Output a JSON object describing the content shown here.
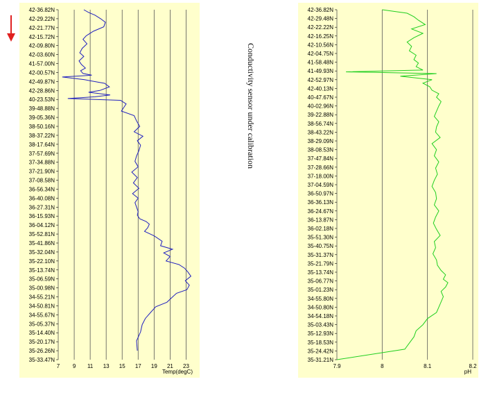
{
  "caption": "Conductivity sensor under calibration",
  "direction_arrow_icon": "arrow-down-icon",
  "colors": {
    "panel_bg": "#ffffcc",
    "temp_line": "#1f1fbf",
    "ph_line": "#1fcf1f",
    "arrow": "#e02020",
    "grid": "#555555"
  },
  "chart_data": [
    {
      "type": "line",
      "id": "temp",
      "xlabel": "Temp(degC)",
      "xticks": [
        "7",
        "9",
        "11",
        "13",
        "15",
        "17",
        "19",
        "21",
        "23"
      ],
      "xlim": [
        7,
        24
      ],
      "ytick_labels": [
        "42-36.82N",
        "42-29.22N",
        "42-21.77N",
        "42-15.72N",
        "42-09.80N",
        "42-03.60N",
        "41-57.00N",
        "42-00.57N",
        "42-49.87N",
        "42-28.86N",
        "40-23.53N",
        "39-48.88N",
        "39-05.36N",
        "38-50.16N",
        "38-37.22N",
        "38-17.64N",
        "37-57.69N",
        "37-34.88N",
        "37-21.90N",
        "37-08.58N",
        "36-56.34N",
        "36-40.08N",
        "36-27.31N",
        "36-15.93N",
        "36-04.12N",
        "35-52.81N",
        "35-41.86N",
        "35-32.04N",
        "35-22.10N",
        "35-13.74N",
        "35-06.59N",
        "35-00.98N",
        "34-55.21N",
        "34-50.81N",
        "34-55.67N",
        "35-05.37N",
        "35-14.40N",
        "35-20.17N",
        "35-26.26N",
        "35-33.47N"
      ],
      "series": [
        {
          "x": [
            10.2,
            10.8,
            11.6,
            12.3,
            12.9,
            12.7,
            11.4,
            10.5,
            10.1,
            10.6,
            10.0,
            9.7,
            10.2,
            9.6,
            9.9,
            10.4,
            9.8,
            10.1,
            11.2,
            7.5,
            10.3,
            12.8,
            13.4,
            12.2,
            10.8,
            13.5,
            11.6,
            8.2,
            14.8,
            15.5,
            15.2,
            14.9,
            16.5,
            16.8,
            17.2,
            16.5,
            17.6,
            16.9,
            17.3,
            17.1,
            16.8,
            16.6,
            17.0,
            16.2,
            16.9,
            16.4,
            17.1,
            16.3,
            17.0,
            16.6,
            16.8,
            17.0,
            16.9,
            17.2,
            18.0,
            18.4,
            18.2,
            17.8,
            19.0,
            20.0,
            19.8,
            21.3,
            20.2,
            21.0,
            20.5,
            22.1,
            22.8,
            23.2,
            23.6,
            22.9,
            23.4,
            23.1,
            21.8,
            21.2,
            20.6,
            19.2,
            18.6,
            17.9,
            17.5,
            17.3,
            16.8,
            16.9
          ],
          "y_index": [
            0.0,
            0.3,
            0.6,
            1.0,
            1.4,
            1.9,
            2.4,
            2.9,
            3.3,
            3.8,
            4.3,
            4.8,
            5.2,
            5.7,
            6.1,
            6.5,
            6.8,
            7.1,
            7.3,
            7.5,
            7.8,
            8.2,
            8.6,
            9.0,
            9.2,
            9.5,
            9.7,
            9.9,
            10.1,
            10.5,
            10.9,
            11.3,
            11.8,
            12.4,
            13.0,
            13.6,
            14.1,
            14.6,
            15.1,
            15.7,
            16.3,
            16.9,
            17.5,
            18.1,
            18.7,
            19.3,
            19.9,
            20.5,
            21.0,
            21.5,
            22.0,
            22.5,
            22.9,
            23.3,
            23.6,
            23.9,
            24.3,
            24.7,
            25.2,
            25.8,
            26.3,
            26.7,
            27.1,
            27.5,
            28.0,
            28.4,
            28.8,
            29.2,
            29.7,
            30.2,
            30.7,
            31.2,
            31.6,
            32.1,
            32.6,
            33.1,
            33.7,
            34.4,
            35.1,
            35.9,
            36.9,
            38.0
          ]
        }
      ]
    },
    {
      "type": "line",
      "id": "ph",
      "xlabel": "pH",
      "xticks": [
        "7.9",
        "8",
        "8.1",
        "8.2"
      ],
      "xlim": [
        7.9,
        8.2
      ],
      "ytick_labels": [
        "42-36.82N",
        "42-29.48N",
        "42-22.22N",
        "42-16.25N",
        "42-10.56N",
        "42-04.75N",
        "41-58.48N",
        "41-49.93N",
        "42-52.97N",
        "42-40.13N",
        "40-47.67N",
        "40-02.96N",
        "39-22.88N",
        "38-56.74N",
        "38-43.22N",
        "38-29.09N",
        "38-08.53N",
        "37-47.84N",
        "37-28.66N",
        "37-18.00N",
        "37-04.59N",
        "36-50.97N",
        "36-36.13N",
        "36-24.67N",
        "36-13.87N",
        "36-02.18N",
        "35-51.30N",
        "35-40.75N",
        "35-31.37N",
        "35-21.79N",
        "35-13.74N",
        "35-06.77N",
        "35-01.23N",
        "34-55.80N",
        "34-50.80N",
        "34-54.18N",
        "35-03.43N",
        "35-12.93N",
        "35-18.53N",
        "35-24.42N",
        "35-31.21N"
      ],
      "series": [
        {
          "x": [
            8.0,
            8.055,
            8.07,
            8.08,
            8.095,
            8.065,
            8.09,
            8.07,
            8.055,
            8.065,
            8.06,
            8.075,
            8.07,
            8.08,
            8.075,
            8.09,
            7.92,
            8.12,
            8.04,
            8.11,
            8.09,
            8.105,
            8.11,
            8.125,
            8.12,
            8.13,
            8.125,
            8.12,
            8.115,
            8.125,
            8.12,
            8.118,
            8.128,
            8.11,
            8.12,
            8.115,
            8.125,
            8.118,
            8.122,
            8.115,
            8.11,
            8.118,
            8.12,
            8.115,
            8.125,
            8.118,
            8.113,
            8.12,
            8.128,
            8.115,
            8.118,
            8.112,
            8.12,
            8.122,
            8.13,
            8.14,
            8.135,
            8.145,
            8.14,
            8.13,
            8.135,
            8.13,
            8.125,
            8.12,
            8.1,
            8.09,
            8.075,
            8.07,
            8.06,
            8.05,
            7.9
          ],
          "y_index": [
            0.0,
            0.4,
            0.8,
            1.2,
            1.7,
            2.2,
            2.7,
            3.2,
            3.7,
            4.2,
            4.7,
            5.2,
            5.7,
            6.1,
            6.5,
            6.9,
            7.1,
            7.3,
            7.6,
            8.0,
            8.4,
            8.8,
            9.2,
            9.6,
            10.0,
            10.5,
            11.0,
            11.6,
            12.2,
            12.8,
            13.4,
            14.0,
            14.6,
            15.3,
            16.0,
            16.7,
            17.4,
            18.1,
            18.8,
            19.5,
            20.2,
            20.9,
            21.6,
            22.3,
            23.0,
            23.7,
            24.4,
            25.1,
            25.8,
            26.5,
            27.2,
            27.9,
            28.6,
            29.2,
            29.8,
            30.3,
            30.8,
            31.2,
            31.7,
            32.2,
            32.8,
            33.4,
            34.0,
            34.6,
            35.3,
            36.0,
            36.7,
            37.4,
            38.1,
            38.8,
            40.0
          ]
        }
      ]
    }
  ]
}
